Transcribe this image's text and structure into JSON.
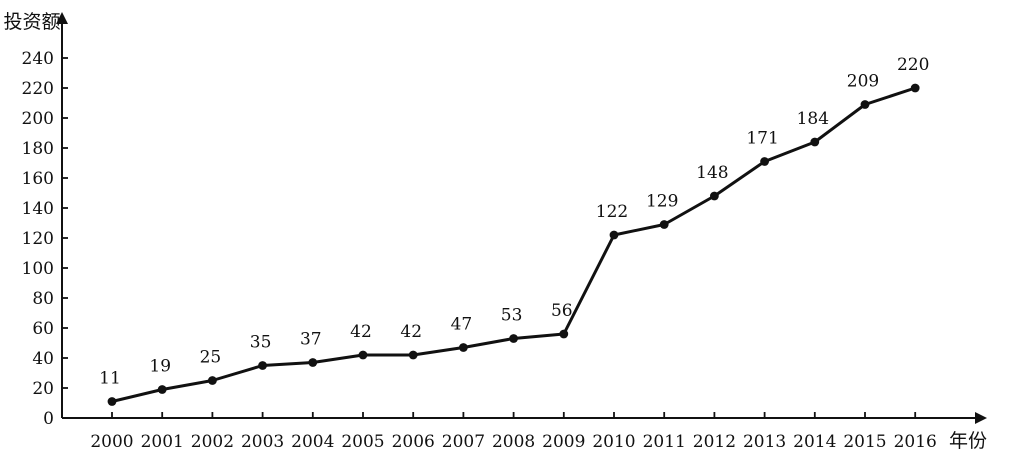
{
  "chart_data": {
    "type": "line",
    "title": "",
    "xlabel": "年份",
    "ylabel": "投资额",
    "categories": [
      "2000",
      "2001",
      "2002",
      "2003",
      "2004",
      "2005",
      "2006",
      "2007",
      "2008",
      "2009",
      "2010",
      "2011",
      "2012",
      "2013",
      "2014",
      "2015",
      "2016"
    ],
    "series": [
      {
        "values": [
          11,
          19,
          25,
          35,
          37,
          42,
          42,
          47,
          53,
          56,
          122,
          129,
          148,
          171,
          184,
          209,
          220
        ]
      }
    ],
    "data_labels": [
      "11",
      "19",
      "25",
      "35",
      "37",
      "42",
      "42",
      "47",
      "53",
      "56",
      "122",
      "129",
      "148",
      "171",
      "184",
      "209",
      "220"
    ],
    "yticks": [
      0,
      20,
      40,
      60,
      80,
      100,
      120,
      140,
      160,
      180,
      200,
      220,
      240
    ],
    "ylim": [
      0,
      260
    ],
    "grid": false,
    "legend": "none",
    "colors": {
      "line": "#111111",
      "text": "#111111",
      "background": "#ffffff"
    }
  }
}
